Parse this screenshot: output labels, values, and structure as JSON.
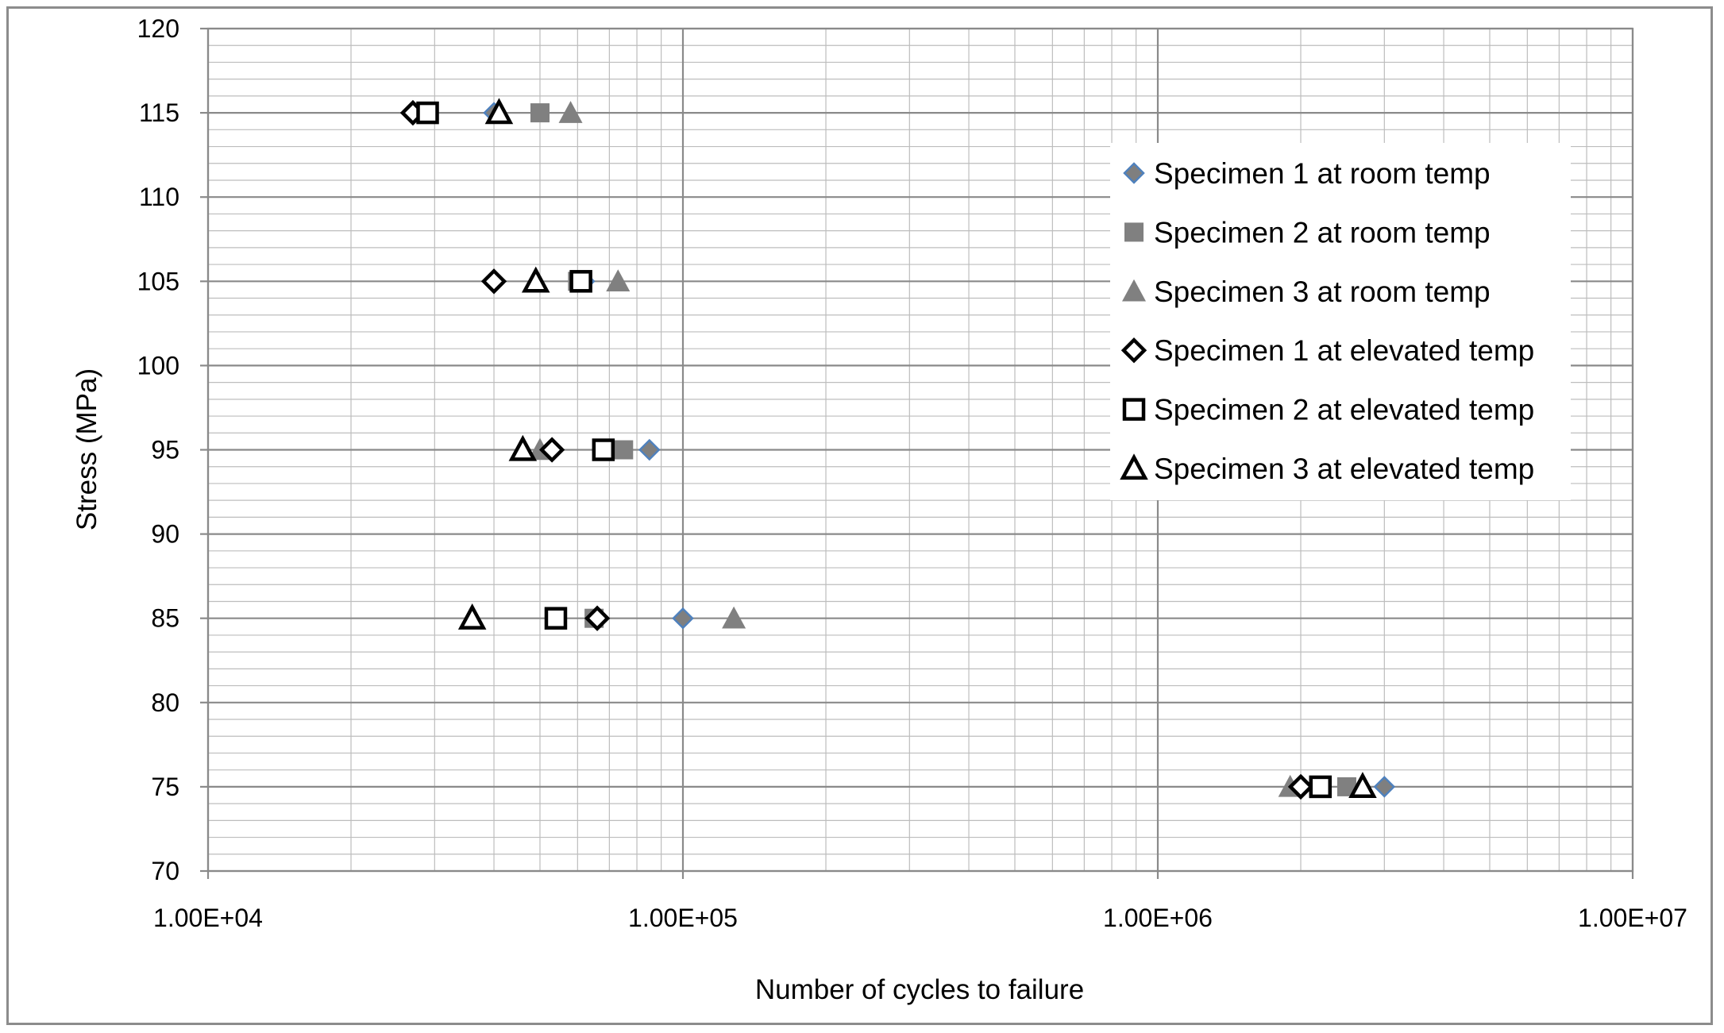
{
  "chart_data": {
    "type": "scatter",
    "title": "",
    "xlabel": "Number of cycles to failure",
    "ylabel": "Stress  (MPa)",
    "x_scale": "log",
    "xlim": [
      10000,
      10000000
    ],
    "ylim": [
      70,
      120
    ],
    "x_ticks": [
      "1.00E+04",
      "1.00E+05",
      "1.00E+06",
      "1.00E+07"
    ],
    "y_ticks": [
      "70",
      "75",
      "80",
      "85",
      "90",
      "95",
      "100",
      "105",
      "110",
      "115",
      "120"
    ],
    "grid": true,
    "legend_position": "right",
    "series": [
      {
        "name": "Specimen 1 at room temp",
        "marker": "diamond-filled",
        "color": "#7f7f7f",
        "edge_color": "#4f81bd",
        "points": [
          [
            40000,
            115
          ],
          [
            62000,
            105
          ],
          [
            85000,
            95
          ],
          [
            100000,
            85
          ],
          [
            3000000,
            75
          ]
        ]
      },
      {
        "name": "Specimen 2 at room temp",
        "marker": "square-filled",
        "color": "#808080",
        "points": [
          [
            50000,
            115
          ],
          [
            60000,
            105
          ],
          [
            75000,
            95
          ],
          [
            65000,
            85
          ],
          [
            2500000,
            75
          ]
        ]
      },
      {
        "name": "Specimen 3 at room temp",
        "marker": "triangle-filled",
        "color": "#808080",
        "points": [
          [
            58000,
            115
          ],
          [
            73000,
            105
          ],
          [
            50000,
            95
          ],
          [
            128000,
            85
          ],
          [
            1900000,
            75
          ]
        ]
      },
      {
        "name": "Specimen 1 at elevated temp",
        "marker": "diamond-open",
        "color": "#000000",
        "points": [
          [
            27000,
            115
          ],
          [
            40000,
            105
          ],
          [
            53000,
            95
          ],
          [
            66000,
            85
          ],
          [
            2000000,
            75
          ]
        ]
      },
      {
        "name": "Specimen 2 at elevated temp",
        "marker": "square-open",
        "color": "#000000",
        "points": [
          [
            29000,
            115
          ],
          [
            61000,
            105
          ],
          [
            68000,
            95
          ],
          [
            54000,
            85
          ],
          [
            2200000,
            75
          ]
        ]
      },
      {
        "name": "Specimen 3 at elevated temp",
        "marker": "triangle-open",
        "color": "#000000",
        "points": [
          [
            41000,
            115
          ],
          [
            49000,
            105
          ],
          [
            46000,
            95
          ],
          [
            36000,
            85
          ],
          [
            2700000,
            75
          ]
        ]
      }
    ]
  }
}
